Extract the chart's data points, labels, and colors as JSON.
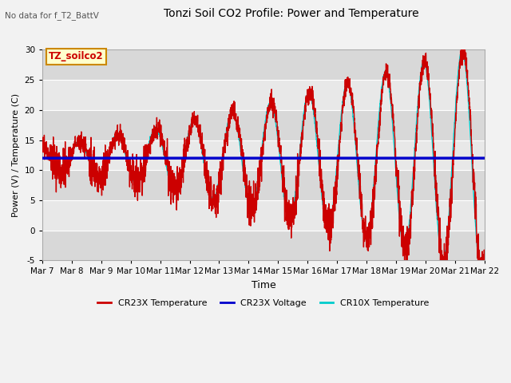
{
  "title": "Tonzi Soil CO2 Profile: Power and Temperature",
  "subtitle": "No data for f_T2_BattV",
  "xlabel": "Time",
  "ylabel": "Power (V) / Temperature (C)",
  "ylim": [
    -5,
    30
  ],
  "yticks": [
    -5,
    0,
    5,
    10,
    15,
    20,
    25,
    30
  ],
  "x_tick_labels": [
    "Mar 7",
    "Mar 8",
    "Mar 9",
    "Mar 10",
    "Mar 11",
    "Mar 12",
    "Mar 13",
    "Mar 14",
    "Mar 15",
    "Mar 16",
    "Mar 17",
    "Mar 18",
    "Mar 19",
    "Mar 20",
    "Mar 21",
    "Mar 22"
  ],
  "voltage_value": 12.0,
  "legend_labels": [
    "CR23X Temperature",
    "CR23X Voltage",
    "CR10X Temperature"
  ],
  "legend_colors": [
    "#cc0000",
    "#0000cc",
    "#00cccc"
  ],
  "plot_bg_color": "#e8e8e8",
  "grid_color": "#ffffff",
  "annotation_box_text": "TZ_soilco2",
  "annotation_box_color": "#ffffcc",
  "annotation_box_border": "#cc8800",
  "annotation_text_color": "#cc0000",
  "fig_facecolor": "#f2f2f2"
}
